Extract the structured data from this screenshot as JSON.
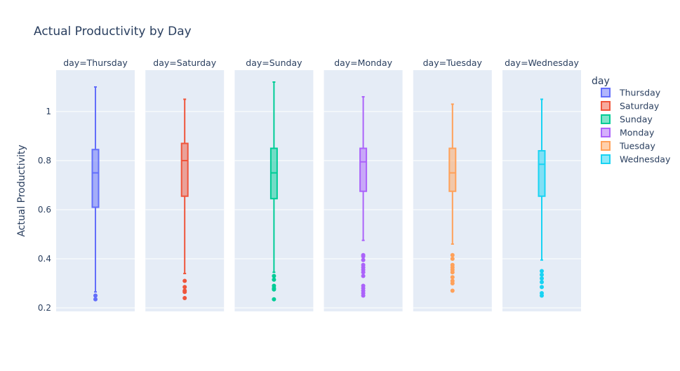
{
  "chart_data": {
    "type": "box",
    "title": "Actual Productivity by Day",
    "ylabel": "Actual Productivity",
    "xlabel": "",
    "ylim": [
      0.2,
      1.15
    ],
    "yticks": [
      0.2,
      0.4,
      0.6,
      0.8,
      1
    ],
    "ytick_labels": [
      "0.2",
      "0.4",
      "0.6",
      "0.8",
      "1"
    ],
    "grid": true,
    "legend": {
      "title": "day",
      "placement": "right"
    },
    "facets": [
      {
        "label": "day=Thursday",
        "name": "Thursday",
        "color": "#636efa",
        "q1": 0.61,
        "median": 0.75,
        "q3": 0.845,
        "lower_fence": 0.265,
        "upper_fence": 1.1,
        "outliers": [
          0.25,
          0.235
        ]
      },
      {
        "label": "day=Saturday",
        "name": "Saturday",
        "color": "#ef553b",
        "q1": 0.655,
        "median": 0.8,
        "q3": 0.87,
        "lower_fence": 0.34,
        "upper_fence": 1.05,
        "outliers": [
          0.31,
          0.285,
          0.27,
          0.265,
          0.24
        ]
      },
      {
        "label": "day=Sunday",
        "name": "Sunday",
        "color": "#00cc96",
        "q1": 0.645,
        "median": 0.75,
        "q3": 0.85,
        "lower_fence": 0.345,
        "upper_fence": 1.12,
        "outliers": [
          0.33,
          0.315,
          0.29,
          0.28,
          0.275,
          0.235
        ]
      },
      {
        "label": "day=Monday",
        "name": "Monday",
        "color": "#ab63fa",
        "q1": 0.675,
        "median": 0.795,
        "q3": 0.85,
        "lower_fence": 0.475,
        "upper_fence": 1.06,
        "outliers": [
          0.415,
          0.41,
          0.395,
          0.375,
          0.365,
          0.355,
          0.345,
          0.33,
          0.29,
          0.28,
          0.27,
          0.26,
          0.25
        ]
      },
      {
        "label": "day=Tuesday",
        "name": "Tuesday",
        "color": "#ffa15a",
        "q1": 0.675,
        "median": 0.75,
        "q3": 0.85,
        "lower_fence": 0.46,
        "upper_fence": 1.03,
        "outliers": [
          0.415,
          0.4,
          0.375,
          0.365,
          0.355,
          0.345,
          0.325,
          0.31,
          0.3,
          0.27
        ]
      },
      {
        "label": "day=Wednesday",
        "name": "Wednesday",
        "color": "#19d3f3",
        "q1": 0.655,
        "median": 0.785,
        "q3": 0.84,
        "lower_fence": 0.395,
        "upper_fence": 1.05,
        "outliers": [
          0.35,
          0.335,
          0.32,
          0.305,
          0.285,
          0.26,
          0.25
        ]
      }
    ]
  }
}
